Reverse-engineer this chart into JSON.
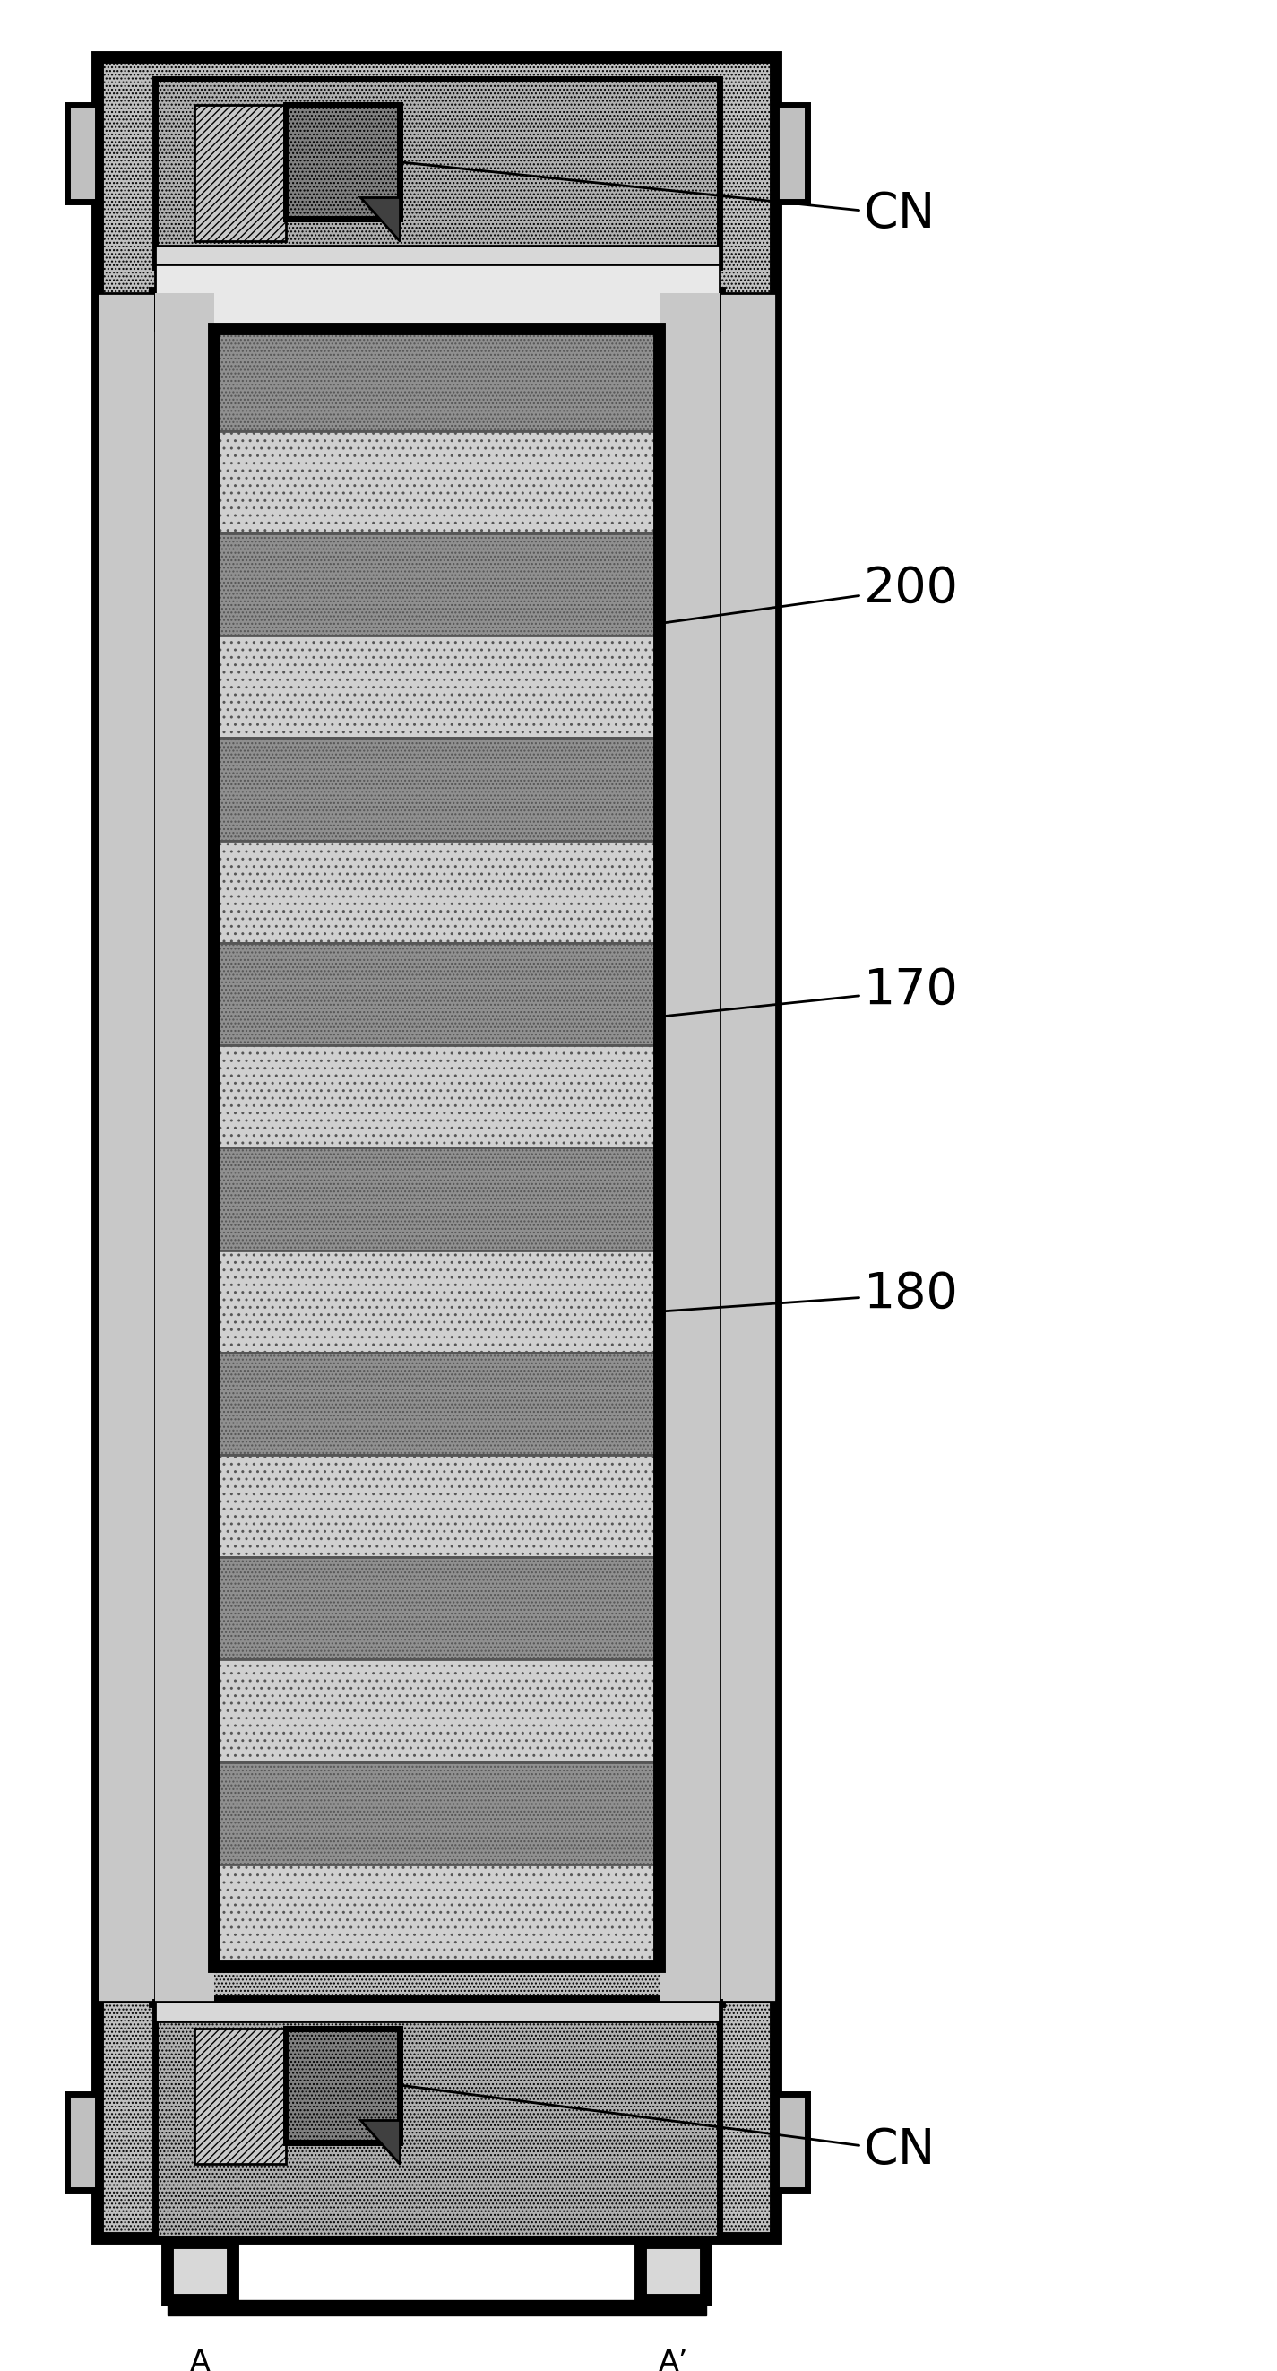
{
  "fig_width": 14.25,
  "fig_height": 26.45,
  "bg": "#ffffff",
  "black": "#000000",
  "gray_outer": "#c0c0c0",
  "gray_mid": "#b0b0b0",
  "gray_light": "#d8d8d8",
  "gray_dark": "#808080",
  "gray_stripe_dark": "#909090",
  "gray_stripe_light": "#d0d0d0",
  "gray_diag": "#c8c8c8",
  "lw_thick": 10,
  "lw_med": 5,
  "lw_thin": 2,
  "num_stripes": 16,
  "label_200": "200",
  "label_170": "170",
  "label_180": "180",
  "label_CN": "CN",
  "label_A": "A",
  "label_Ap": "A’",
  "font_label": 40,
  "font_small": 24
}
